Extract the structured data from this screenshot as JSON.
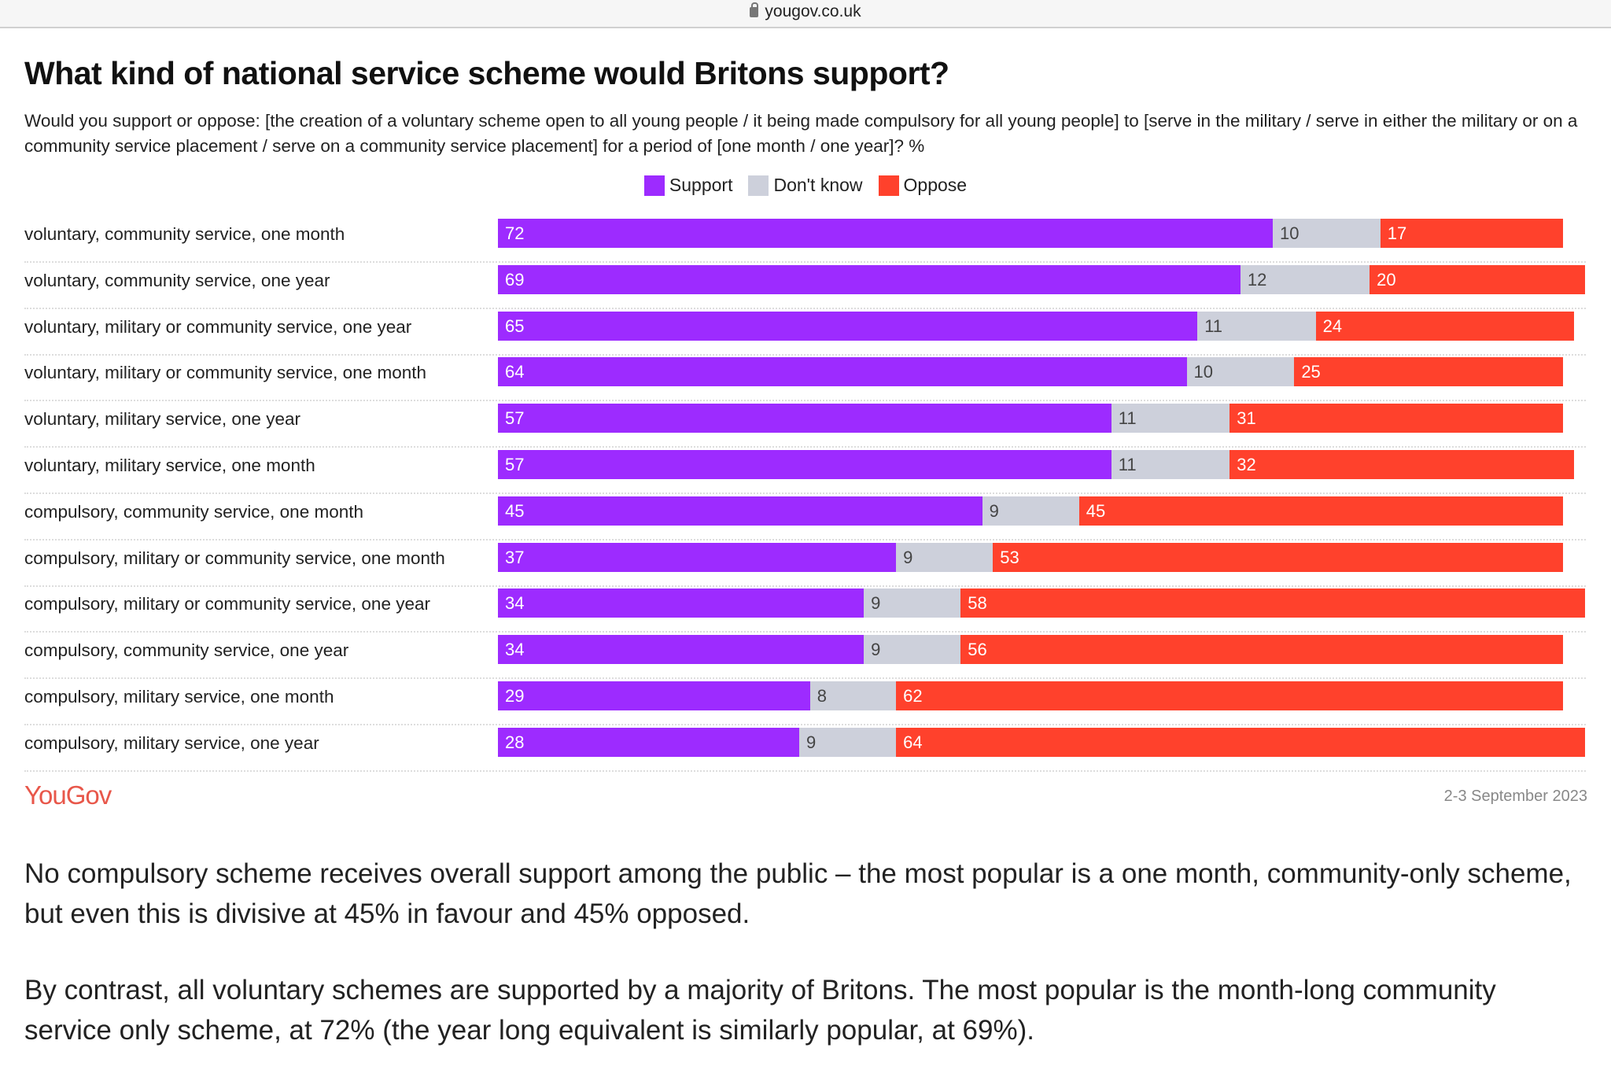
{
  "browser": {
    "url": "yougov.co.uk"
  },
  "chart_data": {
    "type": "bar",
    "stacked": true,
    "orientation": "horizontal",
    "title": "What kind of national service scheme would Britons support?",
    "subtitle": "Would you support or oppose: [the creation of a voluntary scheme open to all young people / it being made compulsory for all young people] to [serve in the military / serve in either the military or on a community service placement / serve on a community service placement] for a period of [one month / one year]? %",
    "legend": [
      {
        "name": "Support",
        "color": "#9d2bff"
      },
      {
        "name": "Don't know",
        "color": "#cdd0db"
      },
      {
        "name": "Oppose",
        "color": "#ff412c"
      }
    ],
    "legend_position": "top-center",
    "categories": [
      "voluntary, community service, one month",
      "voluntary, community service, one year",
      "voluntary, military or community service, one year",
      "voluntary, military or community service, one month",
      "voluntary, military service, one year",
      "voluntary, military service, one month",
      "compulsory, community service, one month",
      "compulsory, military or community service, one month",
      "compulsory, military or community service, one year",
      "compulsory, community service, one year",
      "compulsory, military service, one month",
      "compulsory, military service, one year"
    ],
    "series": [
      {
        "name": "Support",
        "values": [
          72,
          69,
          65,
          64,
          57,
          57,
          45,
          37,
          34,
          34,
          29,
          28
        ]
      },
      {
        "name": "Don't know",
        "values": [
          10,
          12,
          11,
          10,
          11,
          11,
          9,
          9,
          9,
          9,
          8,
          9
        ]
      },
      {
        "name": "Oppose",
        "values": [
          17,
          20,
          24,
          25,
          31,
          32,
          45,
          53,
          58,
          56,
          62,
          64
        ]
      }
    ],
    "xlim": [
      0,
      100
    ]
  },
  "footer": {
    "logo": "YouGov",
    "date": "2-3 September 2023"
  },
  "paragraphs": [
    "No compulsory scheme receives overall support among the public – the most popular is a one month, community-only scheme, but even this is divisive at 45% in favour and 45% opposed.",
    "By contrast, all voluntary schemes are supported by a majority of Britons. The most popular is the month-long community service only scheme, at 72% (the year long equivalent is similarly popular, at 69%)."
  ]
}
